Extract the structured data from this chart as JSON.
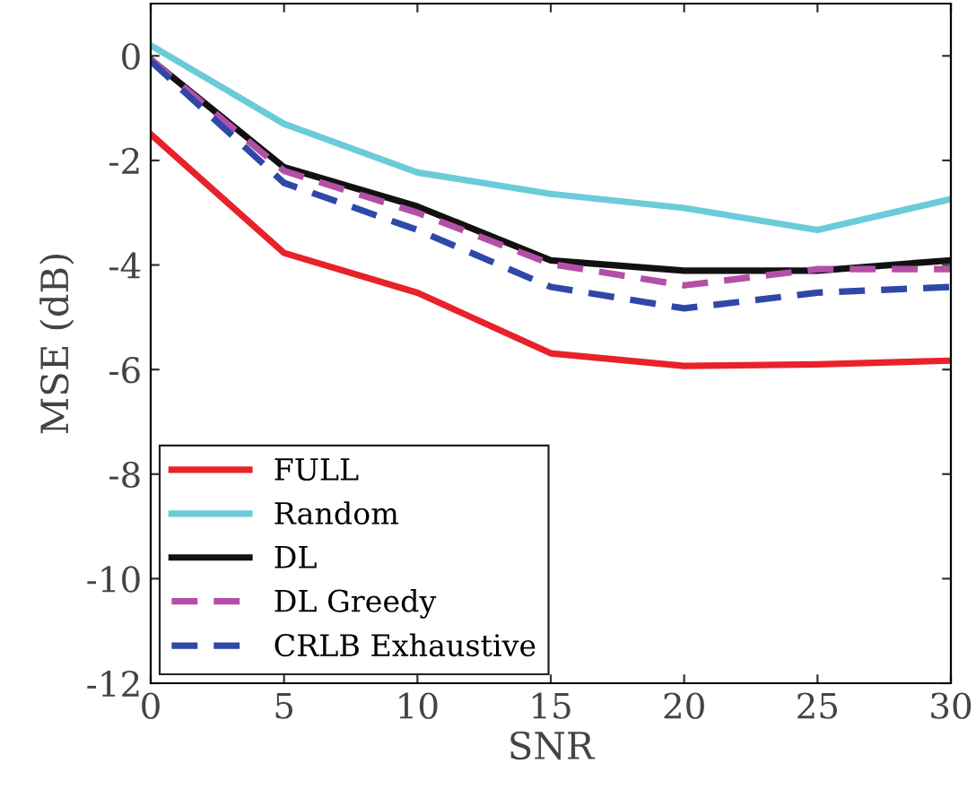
{
  "chart_data": {
    "type": "line",
    "xlabel": "SNR",
    "ylabel": "MSE (dB)",
    "x": [
      0,
      5,
      10,
      15,
      20,
      25,
      30
    ],
    "series": [
      {
        "name": "FULL",
        "color": "#e8222a",
        "line_style": "solid",
        "values": [
          -1.5,
          -3.77,
          -4.53,
          -5.69,
          -5.93,
          -5.9,
          -5.83
        ]
      },
      {
        "name": "Random",
        "color": "#6ccbd9",
        "line_style": "solid",
        "values": [
          0.2,
          -1.3,
          -2.23,
          -2.64,
          -2.91,
          -3.33,
          -2.74
        ]
      },
      {
        "name": "DL",
        "color": "#111111",
        "line_style": "solid",
        "values": [
          -0.07,
          -2.13,
          -2.88,
          -3.91,
          -4.11,
          -4.11,
          -3.91
        ]
      },
      {
        "name": "DL Greedy",
        "color": "#b44fa8",
        "line_style": "dashed",
        "values": [
          -0.07,
          -2.2,
          -3.0,
          -3.98,
          -4.39,
          -4.08,
          -4.08
        ]
      },
      {
        "name": "CRLB Exhaustive",
        "color": "#2f48a8",
        "line_style": "dashed",
        "values": [
          -0.1,
          -2.43,
          -3.33,
          -4.42,
          -4.83,
          -4.53,
          -4.42
        ]
      }
    ],
    "xlim": [
      0,
      30
    ],
    "ylim": [
      -12,
      1
    ],
    "xticks": [
      0,
      5,
      10,
      15,
      20,
      25,
      30
    ],
    "yticks": [
      -12,
      -10,
      -8,
      -6,
      -4,
      -2,
      0
    ],
    "grid": false,
    "legend": "bottom left",
    "marker": "none"
  }
}
